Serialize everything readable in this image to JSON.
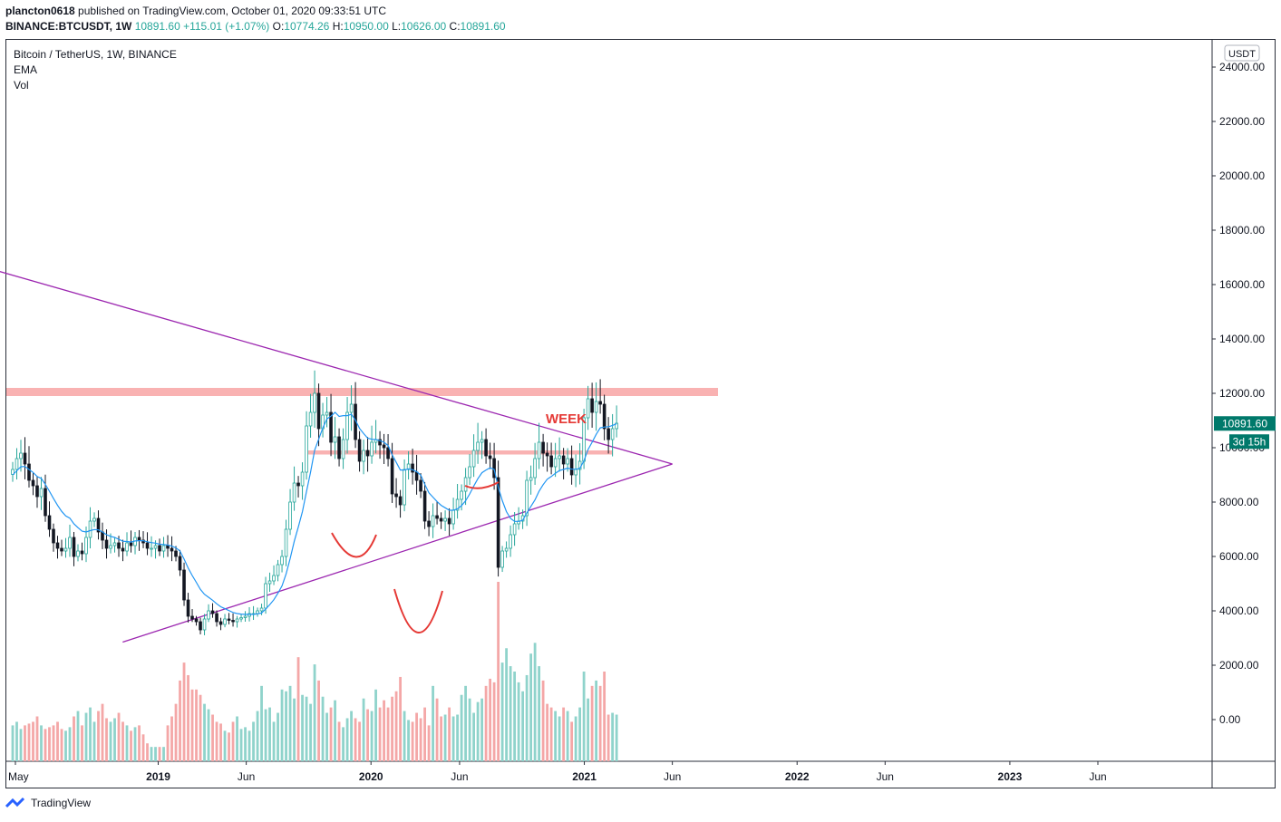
{
  "header": {
    "publisher": "plancton0618",
    "published_text": "published on TradingView.com, October 01, 2020 09:33:51 UTC",
    "symbol": "BINANCE:BTCUSDT, 1W",
    "last": "10891.60",
    "change": "+115.01 (+1.07%)",
    "o_label": "O:",
    "o_value": "10774.26",
    "h_label": "H:",
    "h_value": "10950.00",
    "l_label": "L:",
    "l_value": "10626.00",
    "c_label": "C:",
    "c_value": "10891.60"
  },
  "legend": {
    "title": "Bitcoin / TetherUS, 1W, BINANCE",
    "ema": "EMA",
    "vol": "Vol"
  },
  "footer": {
    "brand": "TradingView"
  },
  "colors": {
    "up": "#26a69a",
    "down": "#131722",
    "ema": "#2196f3",
    "triangle": "#9c27b0",
    "zone": "#f8a5a5",
    "annotation": "#e53935",
    "vol_up": "#8fd3cb",
    "vol_down": "#f4a7a7",
    "price_badge": "#00796b"
  },
  "chart_data": {
    "type": "candlestick",
    "currency_badge": "USDT",
    "price_axis_ticks": [
      "24000.00",
      "22000.00",
      "20000.00",
      "18000.00",
      "16000.00",
      "14000.00",
      "12000.00",
      "10000.00",
      "8000.00",
      "6000.00",
      "4000.00",
      "2000.00",
      "0.00"
    ],
    "time_axis_labels": [
      {
        "label": "May",
        "date": "2018-05"
      },
      {
        "label": "2019",
        "date": "2019-01"
      },
      {
        "label": "Jun",
        "date": "2019-06"
      },
      {
        "label": "2020",
        "date": "2020-01"
      },
      {
        "label": "Jun",
        "date": "2020-06"
      },
      {
        "label": "2021",
        "date": "2021-01"
      },
      {
        "label": "Jun",
        "date": "2021-06"
      },
      {
        "label": "2022",
        "date": "2022-01"
      },
      {
        "label": "Jun",
        "date": "2022-06"
      },
      {
        "label": "2023",
        "date": "2023-01"
      },
      {
        "label": "Jun",
        "date": "2023-06"
      }
    ],
    "last_price": "10891.60",
    "countdown": "3d 15h",
    "annotation_text": "WEEK",
    "weekly_close": [
      9200,
      9600,
      9800,
      9400,
      8800,
      8600,
      8200,
      8500,
      7500,
      7000,
      6500,
      6300,
      6200,
      6300,
      6700,
      6000,
      6200,
      6100,
      6700,
      7300,
      7400,
      6900,
      6600,
      6300,
      6400,
      6500,
      6300,
      6200,
      6500,
      6400,
      6700,
      6600,
      6500,
      6300,
      6300,
      6400,
      6200,
      6400,
      6300,
      6200,
      6000,
      5500,
      4400,
      3800,
      3700,
      3600,
      3300,
      3700,
      4000,
      3900,
      3600,
      3500,
      3700,
      3650,
      3600,
      3700,
      3750,
      3800,
      3900,
      3900,
      4000,
      4100,
      5000,
      5100,
      5300,
      5700,
      6000,
      7000,
      8000,
      8700,
      8600,
      9100,
      10800,
      11300,
      12000,
      10700,
      11200,
      11300,
      10200,
      10400,
      9600,
      10300,
      11300,
      11600,
      10300,
      9500,
      9900,
      9700,
      10200,
      10300,
      10100,
      10000,
      9600,
      8300,
      8200,
      7900,
      9200,
      9400,
      9100,
      8800,
      8400,
      7300,
      7100,
      7500,
      7400,
      7300,
      7400,
      7200,
      7700,
      8100,
      8400,
      8900,
      9300,
      9900,
      10200,
      10300,
      9700,
      9600,
      8900,
      5600,
      6200,
      6300,
      6800,
      7200,
      7300,
      7500,
      8800,
      8900,
      9600,
      10200,
      9800,
      9700,
      9300,
      9600,
      9700,
      9400,
      9600,
      9000,
      9200,
      9500,
      11100,
      11800,
      11300,
      11700,
      11600,
      10700,
      10300,
      10700,
      10900
    ],
    "ema": [
      9000,
      9150,
      9300,
      9310,
      9200,
      9090,
      8940,
      8870,
      8650,
      8400,
      8130,
      7880,
      7660,
      7490,
      7410,
      7200,
      7060,
      6930,
      6900,
      6950,
      6990,
      6980,
      6900,
      6800,
      6740,
      6700,
      6630,
      6560,
      6550,
      6530,
      6570,
      6580,
      6580,
      6540,
      6510,
      6490,
      6450,
      6440,
      6420,
      6380,
      6320,
      6200,
      5910,
      5580,
      5300,
      5050,
      4790,
      4610,
      4500,
      4390,
      4260,
      4150,
      4080,
      4010,
      3940,
      3900,
      3880,
      3870,
      3870,
      3870,
      3890,
      3920,
      4070,
      4230,
      4410,
      4650,
      4920,
      5360,
      5930,
      6560,
      7090,
      7650,
      8390,
      9110,
      9910,
      10320,
      10730,
      11060,
      11160,
      11300,
      11150,
      11180,
      11180,
      11230,
      11010,
      10710,
      10520,
      10350,
      10310,
      10300,
      10260,
      10200,
      10080,
      9740,
      9460,
      9180,
      9180,
      9220,
      9190,
      9120,
      8990,
      8650,
      8340,
      8180,
      8020,
      7880,
      7790,
      7700,
      7700,
      7750,
      7870,
      8050,
      8300,
      8590,
      8860,
      9080,
      9180,
      9260,
      9200,
      8550,
      8050,
      7650,
      7400,
      7290,
      7290,
      7330,
      7600,
      7840,
      8080,
      8400,
      8640,
      8840,
      8940,
      9060,
      9160,
      9200,
      9250,
      9210,
      9210,
      9240,
      9520,
      9930,
      10200,
      10490,
      10730,
      10760,
      10770,
      10820,
      10880
    ],
    "volume_pct": [
      0.2,
      0.22,
      0.18,
      0.2,
      0.21,
      0.22,
      0.25,
      0.2,
      0.18,
      0.19,
      0.2,
      0.22,
      0.18,
      0.17,
      0.19,
      0.25,
      0.28,
      0.2,
      0.27,
      0.3,
      0.22,
      0.28,
      0.32,
      0.24,
      0.22,
      0.24,
      0.27,
      0.22,
      0.2,
      0.17,
      0.19,
      0.2,
      0.15,
      0.1,
      0.08,
      0.08,
      0.08,
      0.08,
      0.2,
      0.25,
      0.32,
      0.45,
      0.55,
      0.48,
      0.4,
      0.4,
      0.37,
      0.32,
      0.29,
      0.26,
      0.22,
      0.21,
      0.17,
      0.16,
      0.22,
      0.25,
      0.18,
      0.19,
      0.17,
      0.22,
      0.28,
      0.42,
      0.29,
      0.3,
      0.22,
      0.27,
      0.4,
      0.39,
      0.42,
      0.35,
      0.58,
      0.37,
      0.36,
      0.32,
      0.54,
      0.45,
      0.36,
      0.27,
      0.3,
      0.34,
      0.22,
      0.19,
      0.24,
      0.28,
      0.24,
      0.22,
      0.35,
      0.29,
      0.28,
      0.4,
      0.3,
      0.34,
      0.3,
      0.36,
      0.39,
      0.47,
      0.28,
      0.23,
      0.22,
      0.27,
      0.24,
      0.3,
      0.2,
      0.42,
      0.35,
      0.25,
      0.26,
      0.3,
      0.25,
      0.26,
      0.37,
      0.42,
      0.35,
      0.27,
      0.33,
      0.35,
      0.42,
      0.46,
      0.44,
      1.0,
      0.55,
      0.63,
      0.53,
      0.5,
      0.44,
      0.39,
      0.48,
      0.6,
      0.66,
      0.53,
      0.45,
      0.32,
      0.3,
      0.28,
      0.25,
      0.3,
      0.28,
      0.22,
      0.25,
      0.3,
      0.5,
      0.35,
      0.42,
      0.45,
      0.42,
      0.5,
      0.26,
      0.27,
      0.26
    ],
    "triangle_upper": [
      {
        "date": "2018-04",
        "price": 16500
      },
      {
        "date": "2021-06",
        "price": 9400
      }
    ],
    "triangle_lower": [
      {
        "date": "2018-11",
        "price": 2850
      },
      {
        "date": "2021-06",
        "price": 9400
      }
    ],
    "resistance_zone": {
      "price_low": 11900,
      "price_high": 12200
    },
    "support_zone": {
      "price_low": 9750,
      "price_high": 9900
    }
  }
}
